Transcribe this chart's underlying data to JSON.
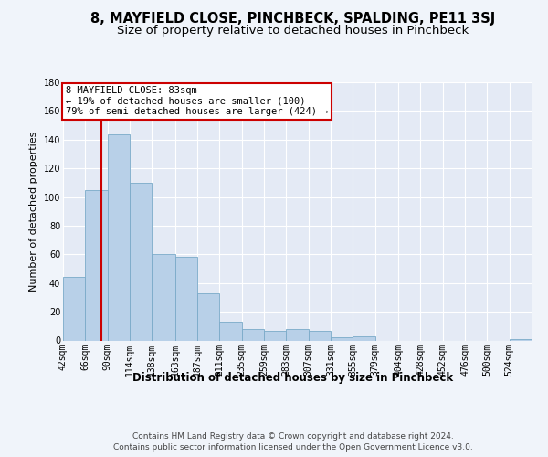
{
  "title": "8, MAYFIELD CLOSE, PINCHBECK, SPALDING, PE11 3SJ",
  "subtitle": "Size of property relative to detached houses in Pinchbeck",
  "xlabel": "Distribution of detached houses by size in Pinchbeck",
  "ylabel": "Number of detached properties",
  "footer_line1": "Contains HM Land Registry data © Crown copyright and database right 2024.",
  "footer_line2": "Contains public sector information licensed under the Open Government Licence v3.0.",
  "annotation_title": "8 MAYFIELD CLOSE: 83sqm",
  "annotation_line2": "← 19% of detached houses are smaller (100)",
  "annotation_line3": "79% of semi-detached houses are larger (424) →",
  "bar_color": "#b8d0e8",
  "bar_edge_color": "#7aaac8",
  "vline_color": "#cc0000",
  "vline_x": 83,
  "bin_edges": [
    42,
    66,
    90,
    114,
    138,
    163,
    187,
    211,
    235,
    259,
    283,
    307,
    331,
    355,
    379,
    404,
    428,
    452,
    476,
    500,
    524,
    548
  ],
  "values": [
    44,
    105,
    144,
    110,
    60,
    58,
    33,
    13,
    8,
    7,
    8,
    7,
    2,
    3,
    0,
    0,
    0,
    0,
    0,
    0,
    1
  ],
  "tick_labels": [
    "42sqm",
    "66sqm",
    "90sqm",
    "114sqm",
    "138sqm",
    "163sqm",
    "187sqm",
    "211sqm",
    "235sqm",
    "259sqm",
    "283sqm",
    "307sqm",
    "331sqm",
    "355sqm",
    "379sqm",
    "404sqm",
    "428sqm",
    "452sqm",
    "476sqm",
    "500sqm",
    "524sqm"
  ],
  "ylim": [
    0,
    180
  ],
  "yticks": [
    0,
    20,
    40,
    60,
    80,
    100,
    120,
    140,
    160,
    180
  ],
  "background_color": "#f0f4fa",
  "plot_bg_color": "#e4eaf5",
  "grid_color": "#ffffff",
  "title_fontsize": 10.5,
  "subtitle_fontsize": 9.5,
  "xlabel_fontsize": 8.5,
  "ylabel_fontsize": 8,
  "tick_fontsize": 7,
  "annotation_fontsize": 7.5,
  "footer_fontsize": 6.5
}
